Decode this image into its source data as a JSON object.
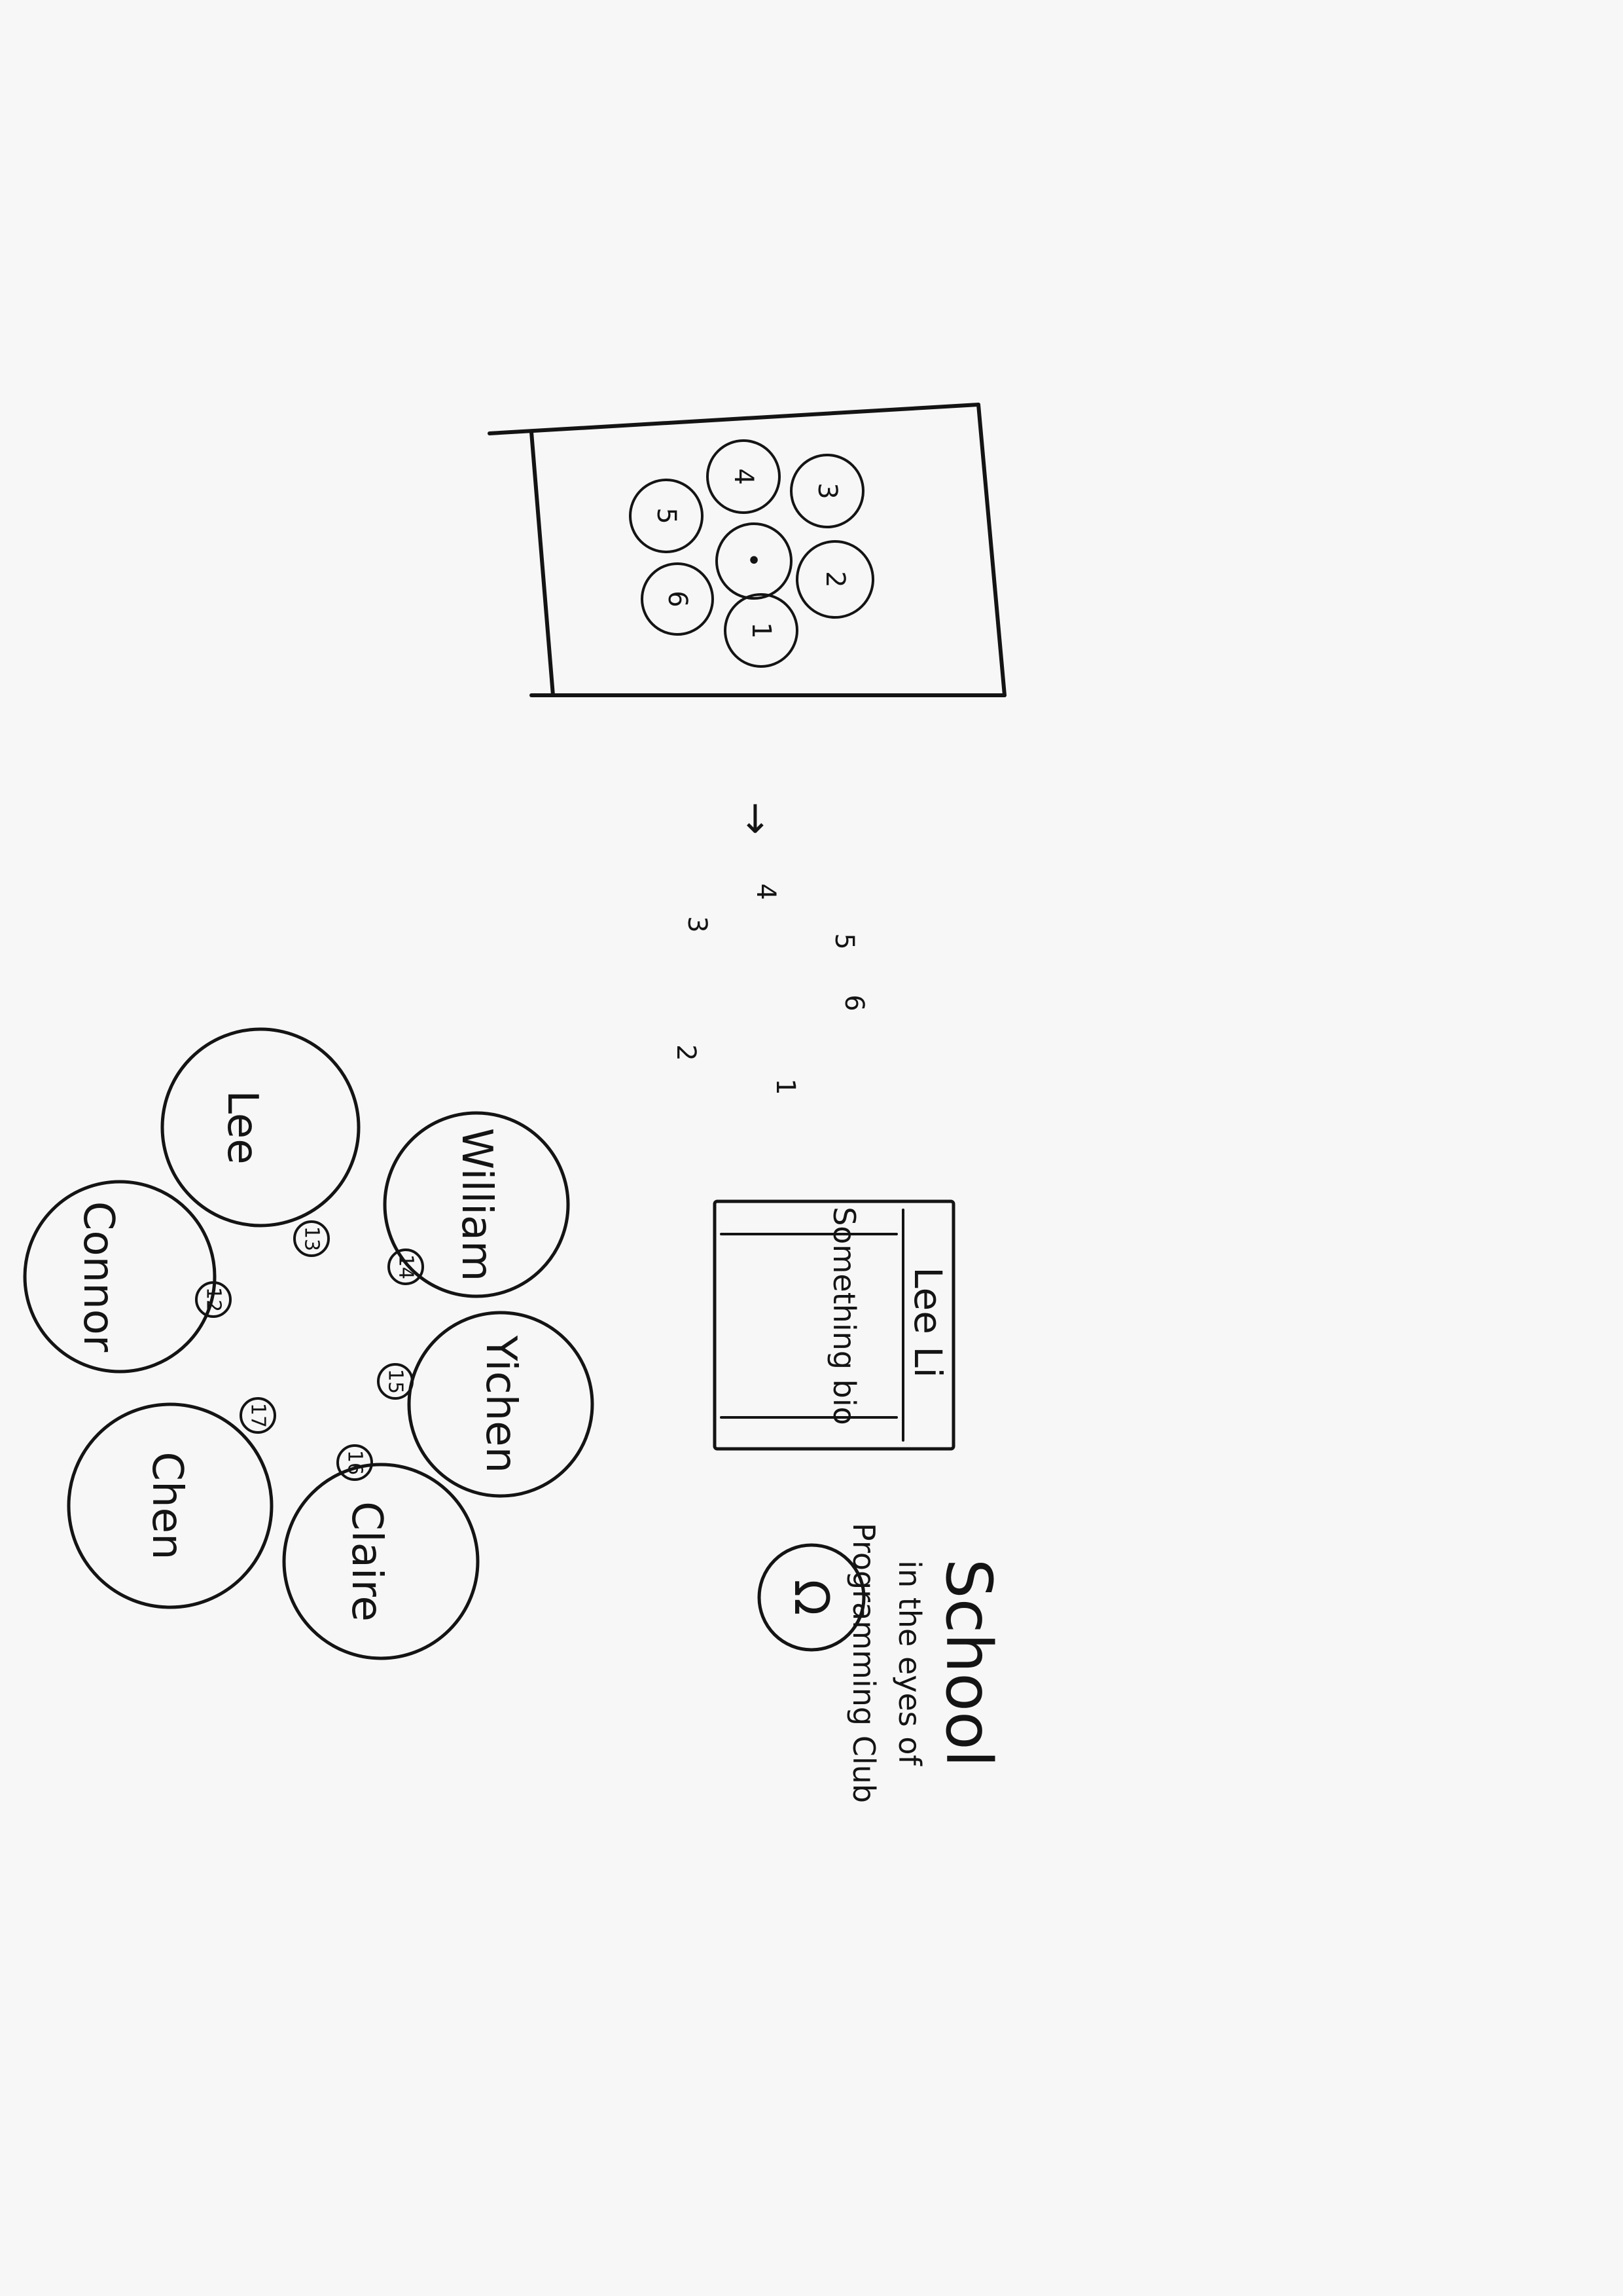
{
  "title": {
    "main": "School",
    "line2": "in the eyes of",
    "line3": "Programming Club"
  },
  "profile_card": {
    "name": "Lee Li",
    "bio": "Something bio"
  },
  "mini_cluster": {
    "center": "•",
    "labels": [
      "1",
      "2",
      "3",
      "4",
      "5",
      "6"
    ]
  },
  "loose_numbers": {
    "arrow": "→",
    "labels": [
      "1",
      "2",
      "3",
      "4",
      "5",
      "6"
    ]
  },
  "members": [
    {
      "name": "Lee",
      "badge": "13"
    },
    {
      "name": "William",
      "badge": "14"
    },
    {
      "name": "Yichen",
      "badge": "15"
    },
    {
      "name": "Claire",
      "badge": "16"
    },
    {
      "name": "Chen",
      "badge": "17"
    },
    {
      "name": "Connor",
      "badge": "12"
    }
  ],
  "icon": "omega-icon",
  "icon_glyph": "Ω"
}
